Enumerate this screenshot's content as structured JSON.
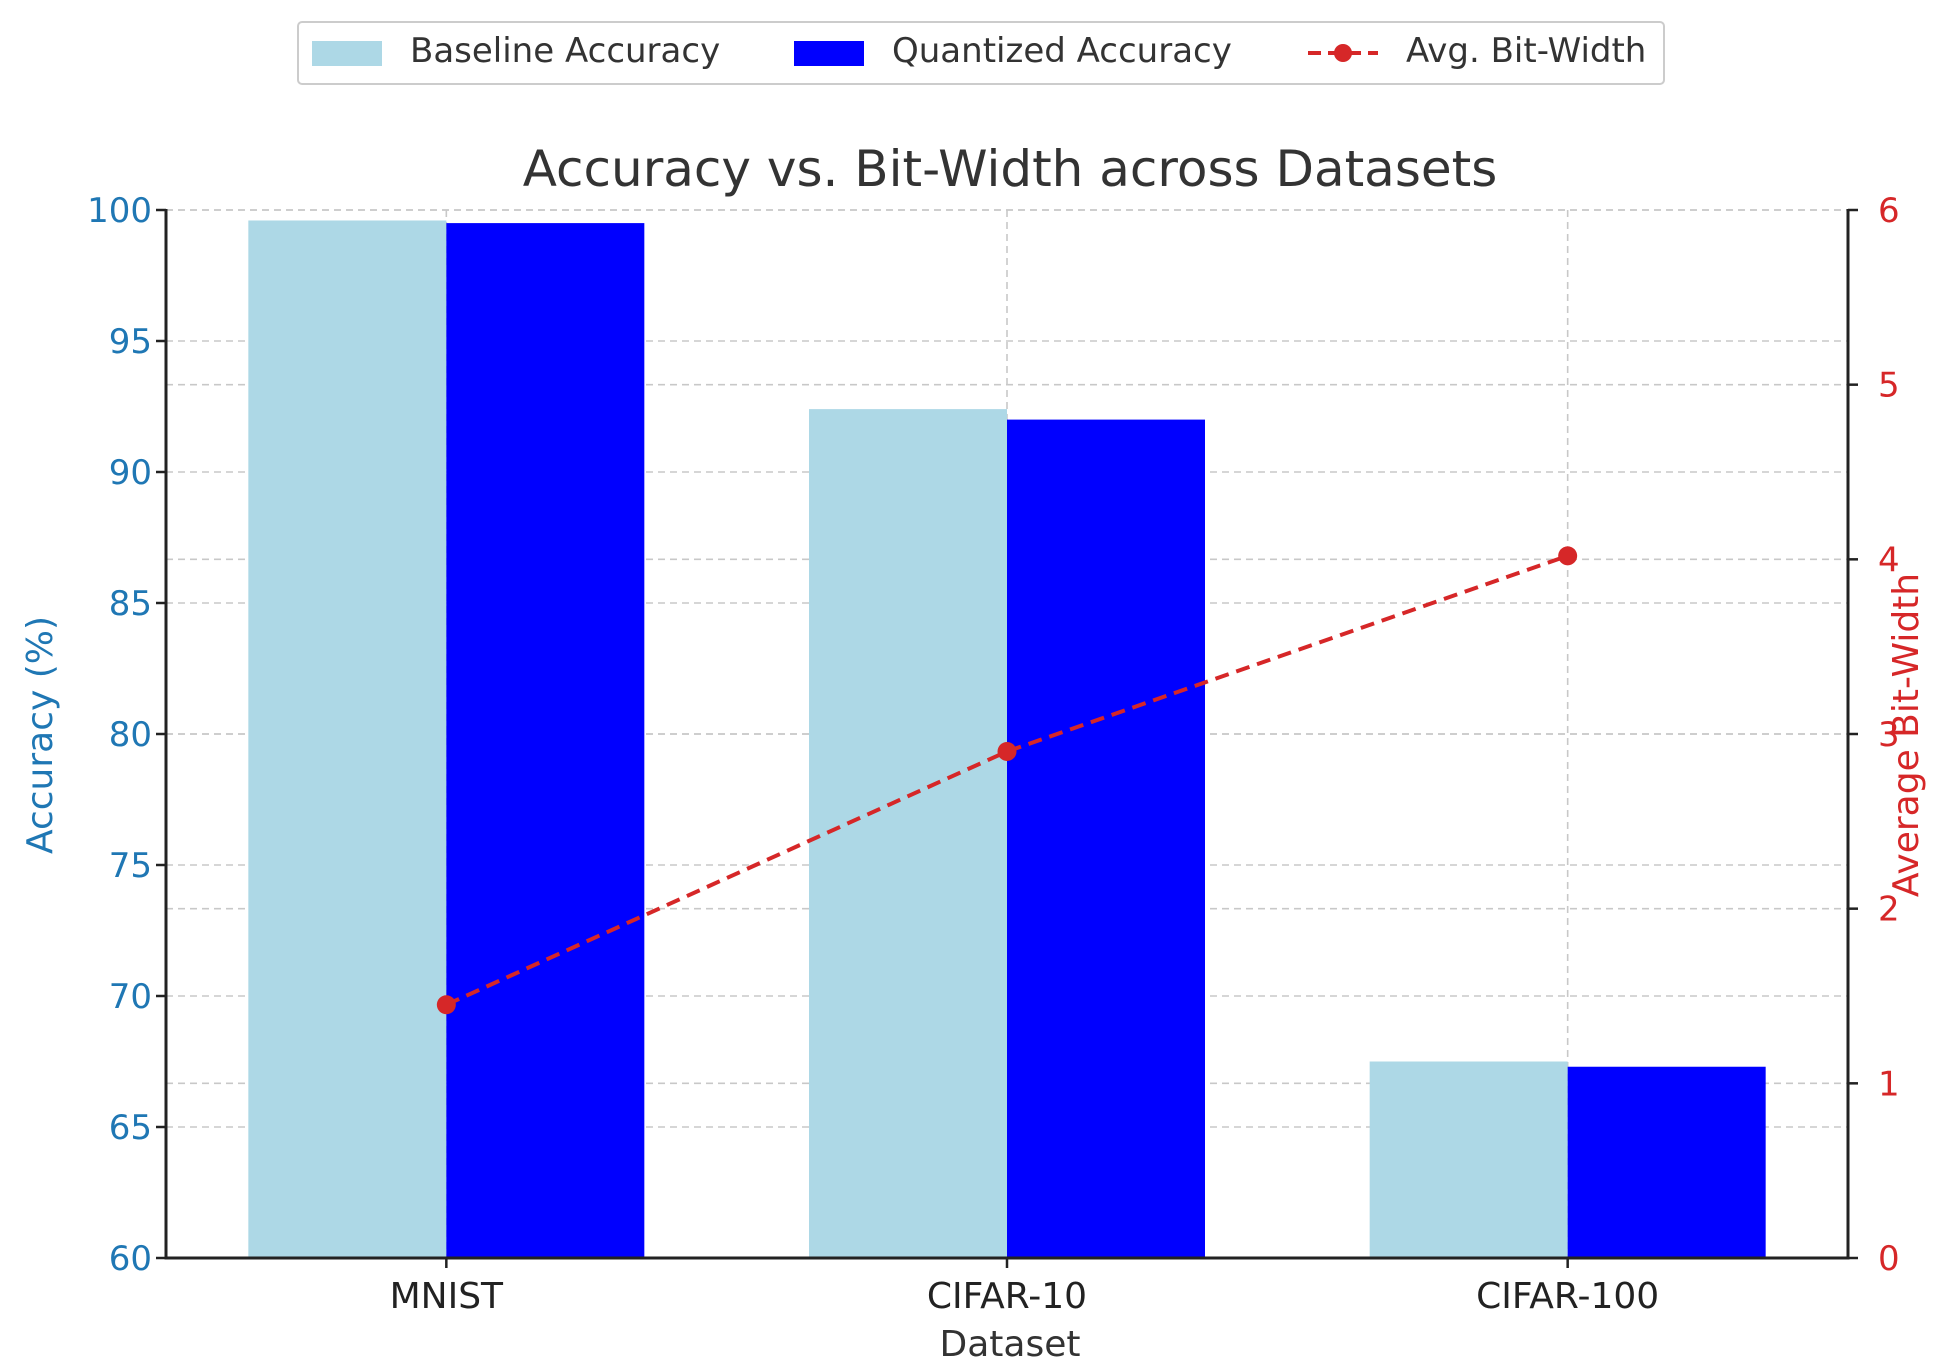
{
  "chart_data": {
    "type": "bar",
    "title": "Accuracy vs. Bit-Width across Datasets",
    "xlabel": "Dataset",
    "ylabel": "Accuracy (%)",
    "y2label": "Average Bit-Width",
    "categories": [
      "MNIST",
      "CIFAR-10",
      "CIFAR-100"
    ],
    "ylim": [
      60,
      100
    ],
    "y2lim": [
      0,
      6
    ],
    "yticks": [
      60,
      65,
      70,
      75,
      80,
      85,
      90,
      95,
      100
    ],
    "y2ticks": [
      0,
      1,
      2,
      3,
      4,
      5,
      6
    ],
    "series": [
      {
        "name": "Baseline Accuracy",
        "kind": "bar",
        "axis": "left",
        "color": "#add8e6",
        "values": [
          99.6,
          92.4,
          67.5
        ]
      },
      {
        "name": "Quantized Accuracy",
        "kind": "bar",
        "axis": "left",
        "color": "#0000ff",
        "values": [
          99.5,
          92.0,
          67.3
        ]
      },
      {
        "name": "Avg. Bit-Width",
        "kind": "line",
        "axis": "right",
        "color": "#d62728",
        "linestyle": "dashed",
        "marker": "circle",
        "values": [
          1.45,
          2.9,
          4.02
        ]
      }
    ],
    "grid": true,
    "legend": "top-center",
    "left_axis_color": "#1f77b4",
    "right_axis_color": "#d62728"
  }
}
